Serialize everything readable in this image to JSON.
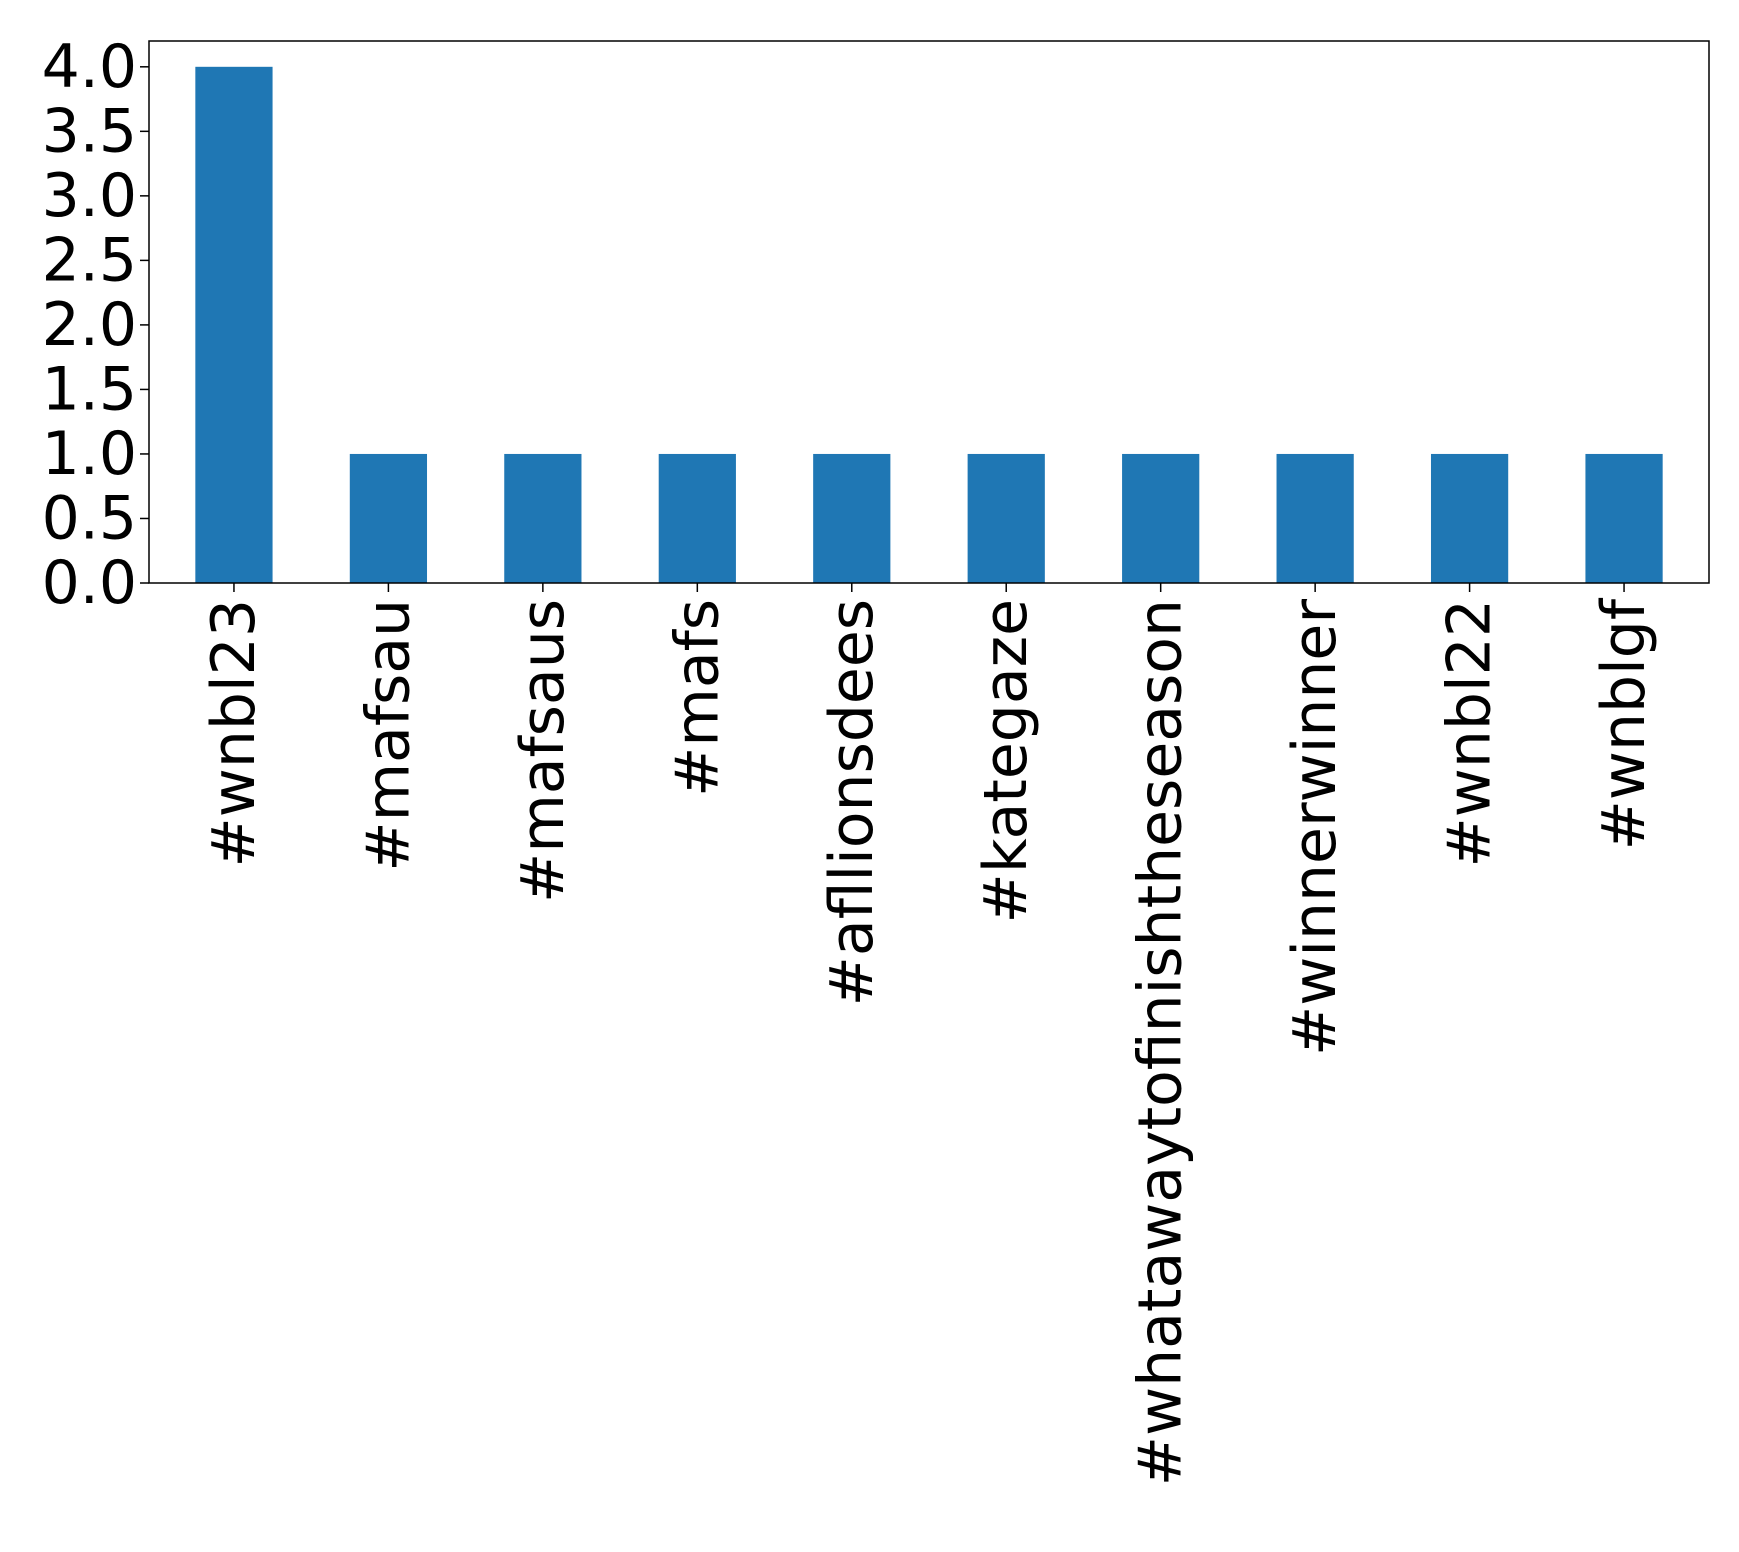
{
  "chart_data": {
    "type": "bar",
    "title": "",
    "xlabel": "",
    "ylabel": "",
    "categories": [
      "#wnbl23",
      "#mafsau",
      "#mafsaus",
      "#mafs",
      "#afllionsdees",
      "#kategaze",
      "#whatawaytofinishtheseason",
      "#winnerwinner",
      "#wnbl22",
      "#wnblgf"
    ],
    "values": [
      4,
      1,
      1,
      1,
      1,
      1,
      1,
      1,
      1,
      1
    ],
    "ylim": [
      0,
      4.2
    ],
    "yticks": [
      "0.0",
      "0.5",
      "1.0",
      "1.5",
      "2.0",
      "2.5",
      "3.0",
      "3.5",
      "4.0"
    ],
    "bar_color": "#1f77b4",
    "grid": false,
    "legend": "none"
  }
}
